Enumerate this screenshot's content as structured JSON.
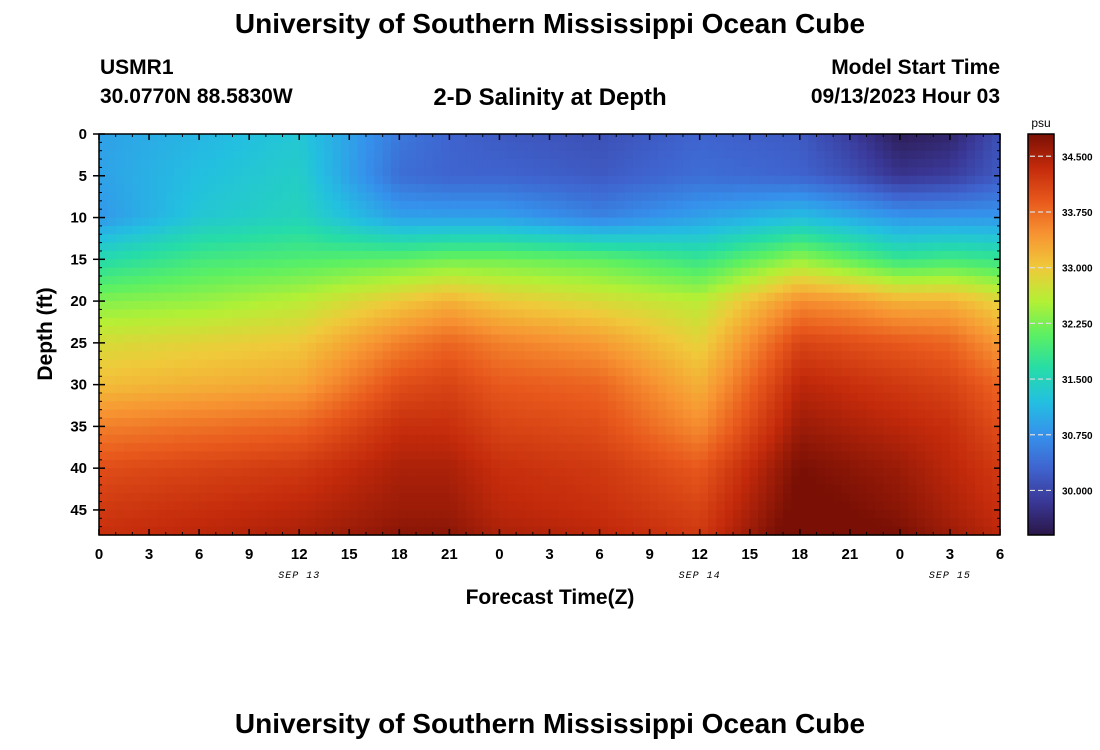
{
  "header": {
    "title": "University of Southern Mississippi Ocean Cube",
    "station_id": "USMR1",
    "station_location": "30.0770N  88.5830W",
    "plot_title": "2-D Salinity at Depth",
    "model_start_label": "Model Start Time",
    "model_start_value": "09/13/2023 Hour 03"
  },
  "footer": {
    "title": "University of Southern Mississippi Ocean Cube"
  },
  "colors": {
    "scale": [
      "#2a1747",
      "#3a3897",
      "#3f64cf",
      "#3592ec",
      "#23c0e0",
      "#26dda6",
      "#5cf062",
      "#b4f035",
      "#f0c93a",
      "#f79432",
      "#e8581c",
      "#c32a0b",
      "#7a1005"
    ]
  },
  "chart_data": {
    "type": "heatmap",
    "title": "2-D Salinity at Depth",
    "xlabel": "Forecast Time(Z)",
    "ylabel": "Depth (ft)",
    "x_ticks": [
      "0",
      "3",
      "6",
      "9",
      "12",
      "15",
      "18",
      "21",
      "0",
      "3",
      "6",
      "9",
      "12",
      "15",
      "18",
      "21",
      "0",
      "3",
      "6"
    ],
    "date_labels": [
      {
        "text": "SEP 13",
        "hour": 12
      },
      {
        "text": "SEP 14",
        "hour": 36
      },
      {
        "text": "SEP 15",
        "hour": 51
      }
    ],
    "x_range_hours": [
      0,
      54
    ],
    "y_ticks": [
      "0",
      "5",
      "10",
      "15",
      "20",
      "25",
      "30",
      "35",
      "40",
      "45"
    ],
    "ylim": [
      0,
      48
    ],
    "colorbar": {
      "unit": "psu",
      "range": [
        29.4,
        34.8
      ],
      "labels": [
        "34.500",
        "33.750",
        "33.000",
        "32.250",
        "31.500",
        "30.750",
        "30.000"
      ]
    },
    "time_hours": [
      0,
      6,
      12,
      18,
      21,
      24,
      30,
      36,
      42,
      45,
      48,
      51,
      54
    ],
    "depths_ft": [
      0,
      5,
      10,
      15,
      20,
      25,
      30,
      35,
      40,
      45,
      48
    ],
    "salinity_psu": [
      [
        30.9,
        30.9,
        30.8,
        31.6,
        32.3,
        32.8,
        33.1,
        33.6,
        34.0,
        34.2,
        34.3
      ],
      [
        31.1,
        31.2,
        31.3,
        31.9,
        32.4,
        32.9,
        33.2,
        33.7,
        34.1,
        34.3,
        34.4
      ],
      [
        31.3,
        31.4,
        31.5,
        32.0,
        32.6,
        33.0,
        33.3,
        33.8,
        34.2,
        34.4,
        34.5
      ],
      [
        30.5,
        30.4,
        30.9,
        32.1,
        33.0,
        33.6,
        34.0,
        34.3,
        34.5,
        34.6,
        34.7
      ],
      [
        30.3,
        30.3,
        30.9,
        32.2,
        33.2,
        33.8,
        34.1,
        34.3,
        34.5,
        34.6,
        34.7
      ],
      [
        30.2,
        30.3,
        30.9,
        32.2,
        33.0,
        33.6,
        33.9,
        34.1,
        34.3,
        34.4,
        34.5
      ],
      [
        30.1,
        30.2,
        30.6,
        32.1,
        32.8,
        33.4,
        33.8,
        34.0,
        34.2,
        34.3,
        34.4
      ],
      [
        30.3,
        30.4,
        30.9,
        31.8,
        32.6,
        32.9,
        33.2,
        33.5,
        33.9,
        34.1,
        34.2
      ],
      [
        30.2,
        30.3,
        31.2,
        32.4,
        33.5,
        34.1,
        34.4,
        34.6,
        34.8,
        34.9,
        35.0
      ],
      [
        29.9,
        30.1,
        31.0,
        32.1,
        33.4,
        34.0,
        34.3,
        34.5,
        34.7,
        34.8,
        34.9
      ],
      [
        29.5,
        29.8,
        30.8,
        31.8,
        33.2,
        33.9,
        34.2,
        34.4,
        34.6,
        34.7,
        34.8
      ],
      [
        29.6,
        29.9,
        30.8,
        31.9,
        33.2,
        33.8,
        34.1,
        34.3,
        34.4,
        34.5,
        34.6
      ],
      [
        30.1,
        30.2,
        30.8,
        31.8,
        32.9,
        33.4,
        33.8,
        34.0,
        34.2,
        34.3,
        34.4
      ]
    ]
  }
}
